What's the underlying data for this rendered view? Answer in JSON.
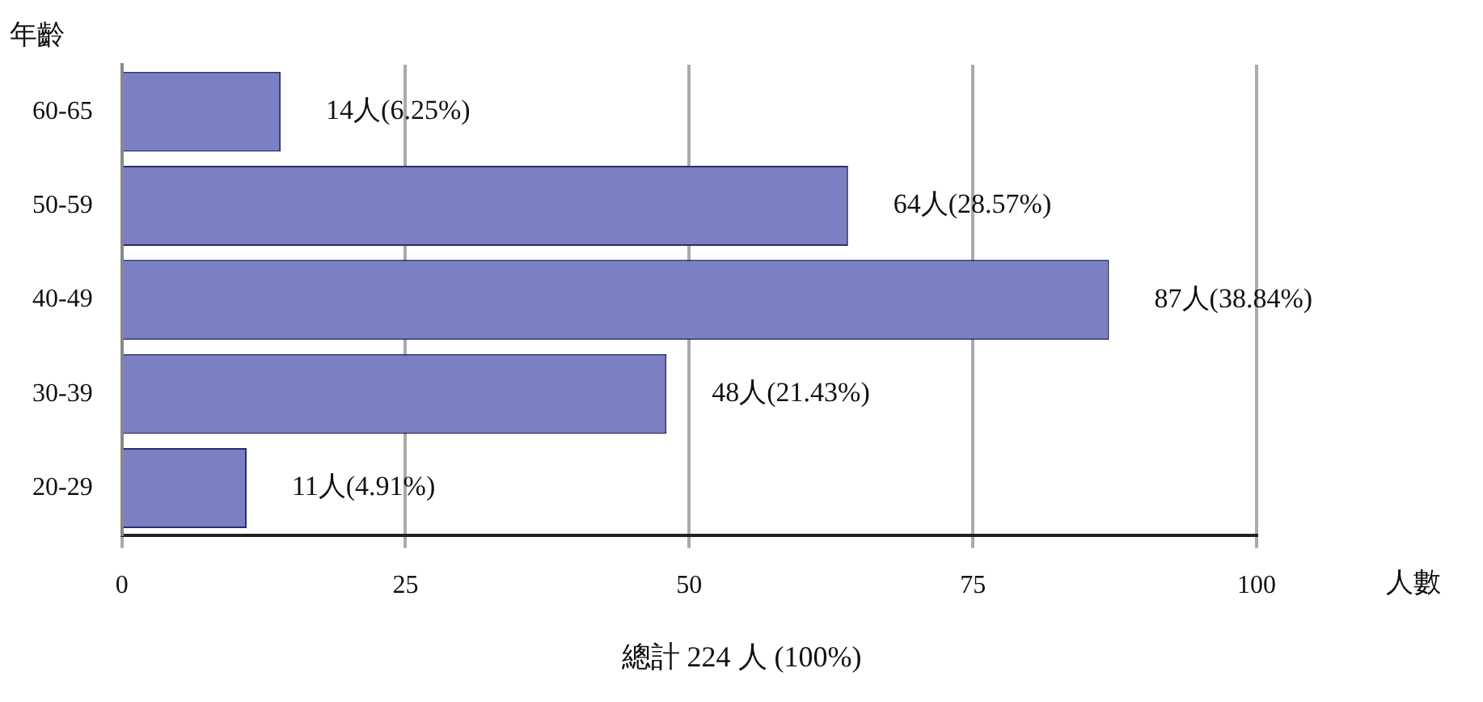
{
  "chart_data": {
    "type": "bar",
    "orientation": "horizontal",
    "xlabel": "人數",
    "ylabel": "年齡",
    "categories": [
      "60-65",
      "50-59",
      "40-49",
      "30-39",
      "20-29"
    ],
    "values": [
      14,
      64,
      87,
      48,
      11
    ],
    "value_labels": [
      "14人(6.25%)",
      "64人(28.57%)",
      "87人(38.84%)",
      "48人(21.43%)",
      "11人(4.91%)"
    ],
    "color": "#7b7fc4",
    "xlim": [
      0,
      100
    ],
    "xticks": [
      0,
      25,
      50,
      75,
      100
    ],
    "grid": "x",
    "legend": false,
    "annotations": [
      "總計 224 人 (100%)"
    ]
  }
}
